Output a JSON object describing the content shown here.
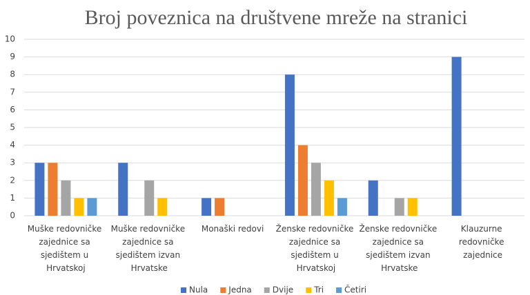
{
  "chart_data": {
    "type": "bar",
    "title": "Broj poveznica na društvene mreže na stranici",
    "categories": [
      "Muške redovničke zajednice sa sjedištem u Hrvatskoj",
      "Muške redovničke zajednice sa sjedištem izvan Hrvatske",
      "Monaški redovi",
      "Ženske redovničke zajednice sa sjedištem u Hrvatskoj",
      "Ženske redovničke zajednice sa sjedištem izvan Hrvatske",
      "Klauzurne redovničke zajednice"
    ],
    "series": [
      {
        "name": "Nula",
        "color": "#4472c4",
        "values": [
          3,
          3,
          1,
          8,
          2,
          9
        ]
      },
      {
        "name": "Jedna",
        "color": "#ed7d31",
        "values": [
          3,
          0,
          1,
          4,
          0,
          0
        ]
      },
      {
        "name": "Dvije",
        "color": "#a5a5a5",
        "values": [
          2,
          2,
          0,
          3,
          1,
          0
        ]
      },
      {
        "name": "Tri",
        "color": "#ffc000",
        "values": [
          1,
          1,
          0,
          2,
          1,
          0
        ]
      },
      {
        "name": "Četiri",
        "color": "#5b9bd5",
        "values": [
          1,
          0,
          0,
          1,
          0,
          0
        ]
      }
    ],
    "ylim": [
      0,
      10
    ],
    "yticks": [
      0,
      1,
      2,
      3,
      4,
      5,
      6,
      7,
      8,
      9,
      10
    ],
    "grid": true,
    "legend": "bottom"
  }
}
